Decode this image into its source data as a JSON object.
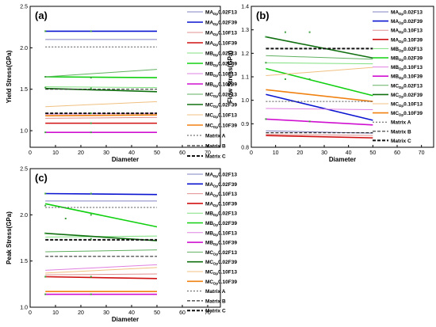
{
  "legend_entries": [
    {
      "label": "MA",
      "sub": "Dp",
      "rest": "0.02F13",
      "color": "#8080c0",
      "width": 1,
      "dash": ""
    },
    {
      "label": "MA",
      "sub": "Dp",
      "rest": "0.02F39",
      "color": "#0a14d0",
      "width": 1.6,
      "dash": ""
    },
    {
      "label": "MA",
      "sub": "Dp",
      "rest": "0.10F13",
      "color": "#e09090",
      "width": 1,
      "dash": ""
    },
    {
      "label": "MA",
      "sub": "Dp",
      "rest": "0.10F39",
      "color": "#d01010",
      "width": 1.6,
      "dash": ""
    },
    {
      "label": "MB",
      "sub": "Dp",
      "rest": "0.02F13",
      "color": "#80e080",
      "width": 1,
      "dash": ""
    },
    {
      "label": "MB",
      "sub": "Dp",
      "rest": "0.02F39",
      "color": "#10d010",
      "width": 1.6,
      "dash": ""
    },
    {
      "label": "MB",
      "sub": "Dp",
      "rest": "0.10F13",
      "color": "#e080e0",
      "width": 1,
      "dash": ""
    },
    {
      "label": "MB",
      "sub": "Dp",
      "rest": "0.10F39",
      "color": "#d010d0",
      "width": 1.6,
      "dash": ""
    },
    {
      "label": "MC",
      "sub": "Dp",
      "rest": "0.02F13",
      "color": "#60b060",
      "width": 1,
      "dash": ""
    },
    {
      "label": "MC",
      "sub": "Dp",
      "rest": "0.02F39",
      "color": "#107010",
      "width": 1.6,
      "dash": ""
    },
    {
      "label": "MC",
      "sub": "Dp",
      "rest": "0.10F13",
      "color": "#f0c080",
      "width": 1,
      "dash": ""
    },
    {
      "label": "MC",
      "sub": "Dp",
      "rest": "0.10F39",
      "color": "#f08010",
      "width": 1.6,
      "dash": ""
    },
    {
      "label": "Matrix A",
      "sub": "",
      "rest": "",
      "color": "#555555",
      "width": 1,
      "dash": "2,2"
    },
    {
      "label": "Matrix B",
      "sub": "",
      "rest": "",
      "color": "#333333",
      "width": 1.2,
      "dash": "4,2"
    },
    {
      "label": "Matrix C",
      "sub": "",
      "rest": "",
      "color": "#111111",
      "width": 2,
      "dash": "4,2"
    }
  ],
  "chart_data": [
    {
      "panel": "(a)",
      "type": "line",
      "xlabel": "Diameter",
      "ylabel": "Yield Stress(GPa)",
      "xlim": [
        0,
        75
      ],
      "ylim": [
        0.8,
        2.5
      ],
      "xticks": [
        0,
        10,
        20,
        30,
        40,
        50,
        60,
        70
      ],
      "yticks": [
        1.0,
        1.5,
        2.0,
        2.5
      ],
      "x": [
        6,
        50
      ],
      "series": [
        {
          "name": "MA 0.02F13",
          "values": [
            2.1,
            2.1
          ]
        },
        {
          "name": "MA 0.02F39",
          "values": [
            2.2,
            2.2
          ]
        },
        {
          "name": "MA 0.10F13",
          "values": [
            1.15,
            1.16
          ]
        },
        {
          "name": "MA 0.10F39",
          "values": [
            1.09,
            1.09
          ]
        },
        {
          "name": "MB 0.02F13",
          "values": [
            1.53,
            1.52
          ]
        },
        {
          "name": "MB 0.02F39",
          "values": [
            1.65,
            1.64
          ]
        },
        {
          "name": "MB 0.10F13",
          "values": [
            1.2,
            1.21
          ]
        },
        {
          "name": "MB 0.10F39",
          "values": [
            0.98,
            0.98
          ]
        },
        {
          "name": "MC 0.02F13",
          "values": [
            1.65,
            1.74
          ]
        },
        {
          "name": "MC 0.02F39",
          "values": [
            1.51,
            1.47
          ]
        },
        {
          "name": "MC 0.10F13",
          "values": [
            1.29,
            1.35
          ]
        },
        {
          "name": "MC 0.10F39",
          "values": [
            1.18,
            1.19
          ]
        },
        {
          "name": "Matrix A",
          "values": [
            2.01,
            2.01
          ]
        },
        {
          "name": "Matrix B",
          "values": [
            1.5,
            1.5
          ]
        },
        {
          "name": "Matrix C",
          "values": [
            1.21,
            1.21
          ]
        }
      ],
      "scatter": [
        [
          6,
          2.2
        ],
        [
          24,
          2.2
        ],
        [
          6,
          1.65
        ],
        [
          24,
          1.64
        ],
        [
          6,
          1.52
        ],
        [
          24,
          1.51
        ],
        [
          24,
          1.21
        ],
        [
          24,
          1.09
        ],
        [
          6,
          0.98
        ],
        [
          24,
          0.98
        ]
      ]
    },
    {
      "panel": "(b)",
      "type": "line",
      "xlabel": "Diameter",
      "ylabel": "Flow Stress(GPa)",
      "xlim": [
        0,
        75
      ],
      "ylim": [
        0.8,
        1.4
      ],
      "xticks": [
        0,
        10,
        20,
        30,
        40,
        50,
        60,
        70
      ],
      "yticks": [
        0.8,
        0.9,
        1.0,
        1.1,
        1.2,
        1.3,
        1.4
      ],
      "x": [
        6,
        50
      ],
      "series": [
        {
          "name": "MA 0.02F13",
          "values": [
            0.87,
            0.86
          ]
        },
        {
          "name": "MA 0.02F39",
          "values": [
            1.025,
            0.915
          ]
        },
        {
          "name": "MA 0.10F13",
          "values": [
            0.855,
            0.85
          ]
        },
        {
          "name": "MA 0.10F39",
          "values": [
            0.85,
            0.84
          ]
        },
        {
          "name": "MB 0.02F13",
          "values": [
            1.16,
            1.155
          ]
        },
        {
          "name": "MB 0.02F39",
          "values": [
            1.135,
            1.02
          ]
        },
        {
          "name": "MB 0.10F13",
          "values": [
            0.965,
            0.96
          ]
        },
        {
          "name": "MB 0.10F39",
          "values": [
            0.92,
            0.895
          ]
        },
        {
          "name": "MC 0.02F13",
          "values": [
            1.19,
            1.175
          ]
        },
        {
          "name": "MC 0.02F39",
          "values": [
            1.27,
            1.18
          ]
        },
        {
          "name": "MC 0.10F13",
          "values": [
            1.105,
            1.14
          ]
        },
        {
          "name": "MC 0.10F39",
          "values": [
            1.045,
            0.995
          ]
        },
        {
          "name": "Matrix A",
          "values": [
            0.995,
            0.995
          ]
        },
        {
          "name": "Matrix B",
          "values": [
            0.862,
            0.862
          ]
        },
        {
          "name": "Matrix C",
          "values": [
            1.22,
            1.22
          ]
        }
      ],
      "scatter": [
        [
          6,
          1.27
        ],
        [
          14,
          1.29
        ],
        [
          24,
          1.29
        ],
        [
          6,
          1.16
        ],
        [
          14,
          1.09
        ],
        [
          24,
          1.09
        ],
        [
          6,
          0.92
        ],
        [
          24,
          0.91
        ]
      ]
    },
    {
      "panel": "(c)",
      "type": "line",
      "xlabel": "Diameter",
      "ylabel": "Peak Stress(GPa)",
      "xlim": [
        0,
        75
      ],
      "ylim": [
        1.0,
        2.5
      ],
      "xticks": [
        0,
        10,
        20,
        30,
        40,
        50,
        60,
        70
      ],
      "yticks": [
        1.0,
        1.5,
        2.0,
        2.5
      ],
      "x": [
        6,
        50
      ],
      "series": [
        {
          "name": "MA 0.02F13",
          "values": [
            2.15,
            2.15
          ]
        },
        {
          "name": "MA 0.02F39",
          "values": [
            2.23,
            2.22
          ]
        },
        {
          "name": "MA 0.10F13",
          "values": [
            1.35,
            1.36
          ]
        },
        {
          "name": "MA 0.10F39",
          "values": [
            1.33,
            1.31
          ]
        },
        {
          "name": "MB 0.02F13",
          "values": [
            1.76,
            1.77
          ]
        },
        {
          "name": "MB 0.02F39",
          "values": [
            2.12,
            1.87
          ]
        },
        {
          "name": "MB 0.10F13",
          "values": [
            1.4,
            1.46
          ]
        },
        {
          "name": "MB 0.10F39",
          "values": [
            1.14,
            1.14
          ]
        },
        {
          "name": "MC 0.02F13",
          "values": [
            1.6,
            1.62
          ]
        },
        {
          "name": "MC 0.02F39",
          "values": [
            1.8,
            1.72
          ]
        },
        {
          "name": "MC 0.10F13",
          "values": [
            1.37,
            1.43
          ]
        },
        {
          "name": "MC 0.10F39",
          "values": [
            1.17,
            1.17
          ]
        },
        {
          "name": "Matrix A",
          "values": [
            2.08,
            2.08
          ]
        },
        {
          "name": "Matrix B",
          "values": [
            1.55,
            1.55
          ]
        },
        {
          "name": "Matrix C",
          "values": [
            1.73,
            1.73
          ]
        }
      ],
      "scatter": [
        [
          6,
          2.23
        ],
        [
          24,
          2.23
        ],
        [
          6,
          2.1
        ],
        [
          14,
          1.96
        ],
        [
          24,
          2.0
        ],
        [
          6,
          1.8
        ],
        [
          24,
          1.74
        ],
        [
          6,
          1.33
        ],
        [
          24,
          1.33
        ],
        [
          6,
          1.14
        ],
        [
          24,
          1.14
        ]
      ]
    }
  ]
}
